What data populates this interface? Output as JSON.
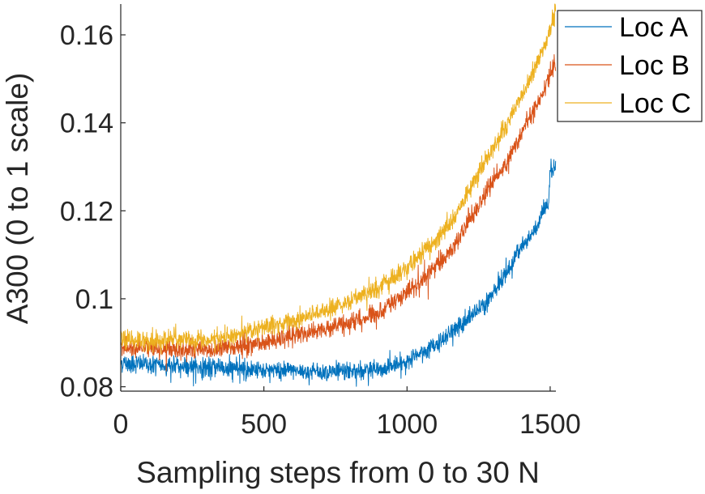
{
  "chart_data": {
    "type": "line",
    "title": "",
    "xlabel": "Sampling steps from 0 to 30 N",
    "ylabel": "A300 (0 to 1 scale)",
    "xlim": [
      0,
      1520
    ],
    "ylim": [
      0.079,
      0.167
    ],
    "xticks": [
      0,
      500,
      1000,
      1500
    ],
    "xtick_labels": [
      "0",
      "500",
      "1000",
      "1500"
    ],
    "yticks": [
      0.08,
      0.1,
      0.12,
      0.14,
      0.16
    ],
    "ytick_labels": [
      "0.08",
      "0.1",
      "0.12",
      "0.14",
      "0.16"
    ],
    "grid": false,
    "legend_position": "top-right",
    "n_points": 1520,
    "series": [
      {
        "name": "Loc A",
        "color": "#0072BD",
        "noise": 0.0012,
        "anchors": [
          [
            0,
            0.0855
          ],
          [
            150,
            0.0848
          ],
          [
            300,
            0.0843
          ],
          [
            500,
            0.0838
          ],
          [
            700,
            0.0834
          ],
          [
            900,
            0.0838
          ],
          [
            1000,
            0.0855
          ],
          [
            1100,
            0.0895
          ],
          [
            1200,
            0.0945
          ],
          [
            1300,
            0.101
          ],
          [
            1350,
            0.106
          ],
          [
            1400,
            0.112
          ],
          [
            1450,
            0.116
          ],
          [
            1480,
            0.12
          ],
          [
            1495,
            0.121
          ],
          [
            1500,
            0.129
          ],
          [
            1520,
            0.1295
          ]
        ]
      },
      {
        "name": "Loc B",
        "color": "#D95319",
        "noise": 0.0012,
        "anchors": [
          [
            0,
            0.089
          ],
          [
            200,
            0.0885
          ],
          [
            300,
            0.0885
          ],
          [
            400,
            0.089
          ],
          [
            500,
            0.09
          ],
          [
            600,
            0.0915
          ],
          [
            700,
            0.093
          ],
          [
            800,
            0.0945
          ],
          [
            900,
            0.097
          ],
          [
            1000,
            0.1015
          ],
          [
            1050,
            0.104
          ],
          [
            1100,
            0.1075
          ],
          [
            1150,
            0.1105
          ],
          [
            1200,
            0.116
          ],
          [
            1250,
            0.1215
          ],
          [
            1300,
            0.1265
          ],
          [
            1350,
            0.131
          ],
          [
            1400,
            0.138
          ],
          [
            1450,
            0.144
          ],
          [
            1500,
            0.151
          ],
          [
            1520,
            0.1545
          ]
        ]
      },
      {
        "name": "Loc C",
        "color": "#EDB120",
        "noise": 0.0012,
        "anchors": [
          [
            0,
            0.0905
          ],
          [
            200,
            0.0905
          ],
          [
            300,
            0.0905
          ],
          [
            400,
            0.0915
          ],
          [
            500,
            0.0935
          ],
          [
            600,
            0.095
          ],
          [
            700,
            0.097
          ],
          [
            800,
            0.0995
          ],
          [
            900,
            0.1025
          ],
          [
            1000,
            0.107
          ],
          [
            1050,
            0.11
          ],
          [
            1100,
            0.1135
          ],
          [
            1150,
            0.117
          ],
          [
            1200,
            0.1225
          ],
          [
            1250,
            0.1285
          ],
          [
            1300,
            0.1345
          ],
          [
            1350,
            0.1395
          ],
          [
            1400,
            0.1465
          ],
          [
            1450,
            0.1525
          ],
          [
            1500,
            0.161
          ],
          [
            1520,
            0.166
          ]
        ]
      }
    ]
  }
}
